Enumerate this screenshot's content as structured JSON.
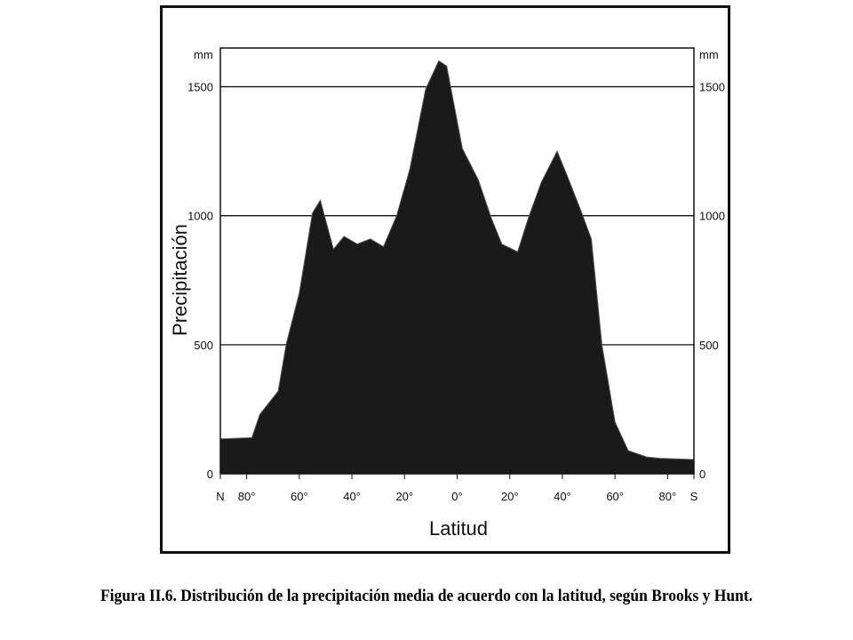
{
  "caption": "Figura II.6. Distribución de la precipitación media de acuerdo con la latitud, según Brooks y Hunt.",
  "chart_data": {
    "type": "area",
    "title": "",
    "xlabel": "Latitud",
    "ylabel": "Precipitación",
    "y_unit_left": "mm",
    "y_unit_right": "mm",
    "ylim": [
      0,
      1650
    ],
    "xlim": [
      -90,
      90
    ],
    "grid": true,
    "fill_color": "#1a1a1a",
    "x_ticks": [
      {
        "value": -90,
        "label": "N"
      },
      {
        "value": -80,
        "label": "80°"
      },
      {
        "value": -60,
        "label": "60°"
      },
      {
        "value": -40,
        "label": "40°"
      },
      {
        "value": -20,
        "label": "20°"
      },
      {
        "value": 0,
        "label": "0°"
      },
      {
        "value": 20,
        "label": "20°"
      },
      {
        "value": 40,
        "label": "40°"
      },
      {
        "value": 60,
        "label": "60°"
      },
      {
        "value": 80,
        "label": "80°"
      },
      {
        "value": 90,
        "label": "S"
      }
    ],
    "y_ticks": [
      {
        "value": 0,
        "label": "0"
      },
      {
        "value": 500,
        "label": "500"
      },
      {
        "value": 1000,
        "label": "1000"
      },
      {
        "value": 1500,
        "label": "1500"
      }
    ],
    "x": [
      -90,
      -78,
      -75,
      -68,
      -65,
      -60,
      -55,
      -52,
      -47,
      -43,
      -38,
      -33,
      -28,
      -23,
      -18,
      -12,
      -7,
      -4,
      2,
      8,
      13,
      17,
      23,
      27,
      32,
      38,
      42,
      47,
      51,
      55,
      60,
      65,
      72,
      77,
      90
    ],
    "values": [
      135,
      140,
      230,
      320,
      500,
      700,
      1010,
      1060,
      870,
      920,
      890,
      910,
      880,
      1000,
      1180,
      1490,
      1600,
      1580,
      1260,
      1140,
      990,
      890,
      860,
      990,
      1130,
      1250,
      1150,
      1020,
      910,
      500,
      200,
      90,
      65,
      60,
      55
    ]
  }
}
